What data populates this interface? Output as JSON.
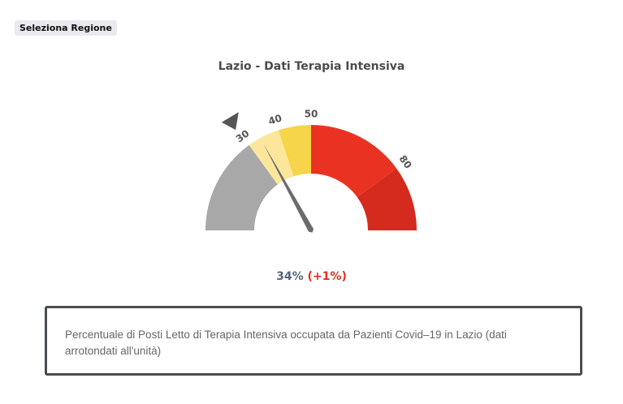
{
  "region_button": {
    "label": "Seleziona Regione"
  },
  "chart_data": {
    "type": "gauge",
    "title": "Lazio - Dati Terapia Intensiva",
    "value": 34,
    "change": 1,
    "value_label": "34%",
    "change_label": "(+1%)",
    "range": [
      0,
      100
    ],
    "threshold_marker": 30,
    "bands": [
      {
        "from": 0,
        "to": 30,
        "color": "#a8a8a8"
      },
      {
        "from": 30,
        "to": 40,
        "color": "#fbe69c"
      },
      {
        "from": 40,
        "to": 50,
        "color": "#f7d54a"
      },
      {
        "from": 50,
        "to": 80,
        "color": "#ea3223"
      },
      {
        "from": 80,
        "to": 100,
        "color": "#d52b1e"
      }
    ],
    "tick_labels": [
      "30",
      "40",
      "50",
      "80"
    ],
    "needle_color": "#6b6b6b"
  },
  "description": "Percentuale di Posti Letto di Terapia Intensiva occupata da Pazienti Covid–19 in Lazio (dati arrotondati all'unità)"
}
